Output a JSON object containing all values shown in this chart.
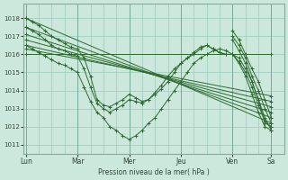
{
  "bg_color": "#cce8dd",
  "grid_color": "#99ccbb",
  "line_color": "#2d6a2d",
  "ylabel_text": "Pression niveau de la mer( hPa )",
  "ylim": [
    1010.5,
    1018.8
  ],
  "yticks": [
    1011,
    1012,
    1013,
    1014,
    1015,
    1016,
    1017,
    1018
  ],
  "day_labels": [
    "Lun",
    "Mar",
    "Mer",
    "Jeu",
    "Ven",
    "Sa"
  ],
  "day_positions": [
    0,
    24,
    48,
    72,
    96,
    114
  ],
  "xlim": [
    -1,
    120
  ],
  "straight_lines": [
    {
      "x": [
        0,
        114
      ],
      "y": [
        1018.0,
        1012.2
      ]
    },
    {
      "x": [
        0,
        114
      ],
      "y": [
        1017.5,
        1012.5
      ]
    },
    {
      "x": [
        0,
        114
      ],
      "y": [
        1017.1,
        1012.8
      ]
    },
    {
      "x": [
        0,
        114
      ],
      "y": [
        1016.8,
        1013.1
      ]
    },
    {
      "x": [
        0,
        114
      ],
      "y": [
        1016.5,
        1013.4
      ]
    },
    {
      "x": [
        0,
        114
      ],
      "y": [
        1016.3,
        1013.7
      ]
    },
    {
      "x": [
        0,
        114
      ],
      "y": [
        1016.0,
        1016.0
      ]
    }
  ],
  "wiggly_lines": [
    {
      "x": [
        0,
        3,
        6,
        9,
        12,
        15,
        18,
        21,
        24,
        27,
        30,
        33,
        36,
        39,
        42,
        45,
        48,
        51,
        54,
        57,
        60,
        63,
        66,
        69,
        72,
        75,
        78,
        81,
        84,
        87,
        90,
        93,
        96,
        99,
        102,
        105,
        108,
        111,
        114
      ],
      "y": [
        1018.0,
        1017.8,
        1017.6,
        1017.3,
        1017.0,
        1016.8,
        1016.6,
        1016.4,
        1016.3,
        1015.8,
        1014.8,
        1013.5,
        1013.2,
        1013.1,
        1013.3,
        1013.5,
        1013.8,
        1013.6,
        1013.4,
        1013.5,
        1013.9,
        1014.3,
        1014.8,
        1015.2,
        1015.5,
        1015.8,
        1016.1,
        1016.4,
        1016.5,
        1016.3,
        1016.1,
        1016.0,
        1016.0,
        1015.6,
        1015.0,
        1014.2,
        1013.2,
        1012.3,
        1012.0
      ]
    },
    {
      "x": [
        0,
        3,
        6,
        9,
        12,
        15,
        18,
        21,
        24,
        27,
        30,
        33,
        36,
        39,
        42,
        45,
        48,
        51,
        54,
        57,
        60,
        63,
        66,
        69,
        72,
        75,
        78,
        81,
        84,
        87,
        90,
        93,
        96,
        99,
        102,
        105,
        108,
        111,
        114
      ],
      "y": [
        1017.5,
        1017.3,
        1017.1,
        1016.8,
        1016.5,
        1016.3,
        1016.2,
        1016.0,
        1015.9,
        1015.2,
        1014.2,
        1013.3,
        1013.0,
        1012.8,
        1013.0,
        1013.2,
        1013.5,
        1013.4,
        1013.3,
        1013.5,
        1013.8,
        1014.1,
        1014.5,
        1015.0,
        1015.5,
        1015.8,
        1016.0,
        1016.3,
        1016.5,
        1016.3,
        1016.1,
        1016.0,
        1016.0,
        1015.5,
        1014.8,
        1013.8,
        1012.8,
        1012.0,
        1011.8
      ]
    },
    {
      "x": [
        0,
        3,
        6,
        9,
        12,
        15,
        18,
        21,
        24,
        27,
        30,
        33,
        36,
        39,
        42,
        45,
        48,
        51,
        54,
        57,
        60,
        63,
        66,
        69,
        72,
        75,
        78,
        81,
        84,
        87,
        90,
        93,
        96,
        99,
        102,
        105,
        108,
        111,
        114
      ],
      "y": [
        1016.5,
        1016.3,
        1016.1,
        1015.9,
        1015.7,
        1015.5,
        1015.4,
        1015.2,
        1015.0,
        1014.2,
        1013.4,
        1012.8,
        1012.5,
        1012.0,
        1011.8,
        1011.5,
        1011.3,
        1011.5,
        1011.8,
        1012.2,
        1012.5,
        1013.0,
        1013.5,
        1014.0,
        1014.5,
        1015.0,
        1015.5,
        1015.8,
        1016.0,
        1016.2,
        1016.3,
        1016.2,
        1016.0,
        1015.8,
        1015.2,
        1014.5,
        1013.5,
        1012.2,
        1012.0
      ]
    }
  ],
  "ven_sa_lines": [
    {
      "x": [
        96,
        99,
        102,
        105,
        108,
        111,
        114
      ],
      "y": [
        1017.3,
        1016.8,
        1016.0,
        1015.2,
        1014.5,
        1013.5,
        1012.5
      ]
    },
    {
      "x": [
        96,
        99,
        102,
        105,
        108,
        111,
        114
      ],
      "y": [
        1017.0,
        1016.5,
        1015.8,
        1014.8,
        1014.0,
        1013.0,
        1012.2
      ]
    },
    {
      "x": [
        96,
        99,
        102,
        105,
        108,
        111,
        114
      ],
      "y": [
        1016.8,
        1016.2,
        1015.5,
        1014.5,
        1013.5,
        1012.5,
        1011.8
      ]
    }
  ]
}
